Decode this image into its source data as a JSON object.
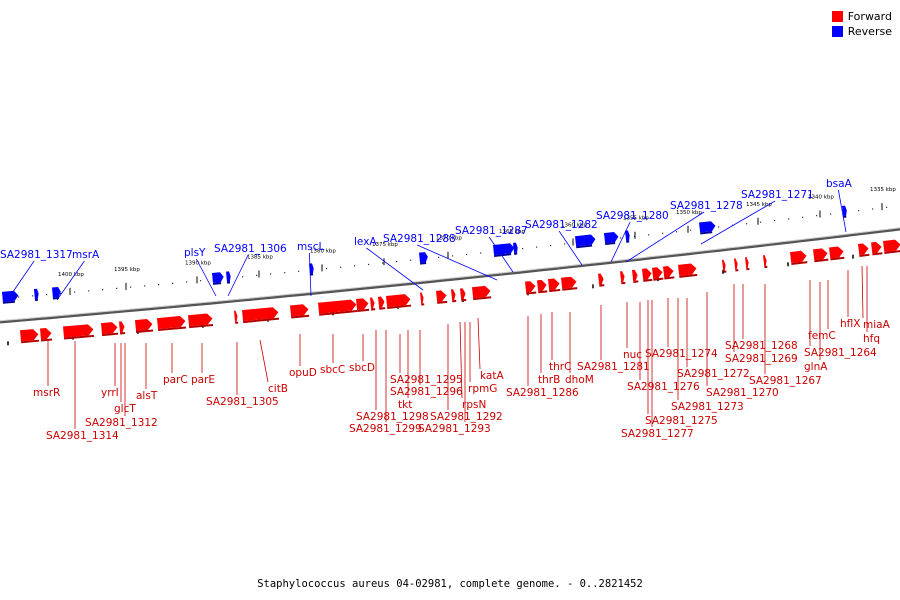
{
  "legend": {
    "forward_label": "Forward",
    "reverse_label": "Reverse",
    "forward_color": "#ff0000",
    "reverse_color": "#0000ff"
  },
  "caption": "Staphylococcus aureus 04-02981, complete genome. - 0..2821452",
  "axis": {
    "color": "#555555",
    "ticks": [
      "1400 kbp",
      "1395 kbp",
      "1390 kbp",
      "1385 kbp",
      "1380 kbp",
      "1375 kbp",
      "1370 kbp",
      "1365 kbp",
      "1360 kbp",
      "1355 kbp",
      "1350 kbp",
      "1345 kbp",
      "1340 kbp",
      "1335 kbp"
    ]
  },
  "reverse_genes": [
    "SA2981_1317",
    "msrA",
    "plsY",
    "SA2981_1306",
    "mscL",
    "lexA",
    "SA2981_1288",
    "SA2981_1287",
    "SA2981_1282",
    "SA2981_1280",
    "SA2981_1278",
    "SA2981_1271",
    "bsaA"
  ],
  "forward_genes": [
    "msrR",
    "SA2981_1314",
    "yrrI",
    "glcT",
    "SA2981_1312",
    "alsT",
    "parC",
    "parE",
    "SA2981_1305",
    "citB",
    "opuD",
    "sbcC",
    "sbcD",
    "SA2981_1295",
    "tkt",
    "SA2981_1296",
    "SA2981_1298",
    "SA2981_1299",
    "SA2981_1292",
    "rpsN",
    "SA2981_1293",
    "rpmG",
    "katA",
    "SA2981_1286",
    "thrB",
    "thrC",
    "dhoM",
    "SA2981_1281",
    "nuc",
    "SA2981_1276",
    "SA2981_1275",
    "SA2981_1277",
    "SA2981_1274",
    "SA2981_1273",
    "SA2981_1272",
    "SA2981_1270",
    "SA2981_1269",
    "SA2981_1268",
    "SA2981_1267",
    "glnA",
    "femC",
    "SA2981_1264",
    "hflX",
    "miaA",
    "hfq"
  ]
}
